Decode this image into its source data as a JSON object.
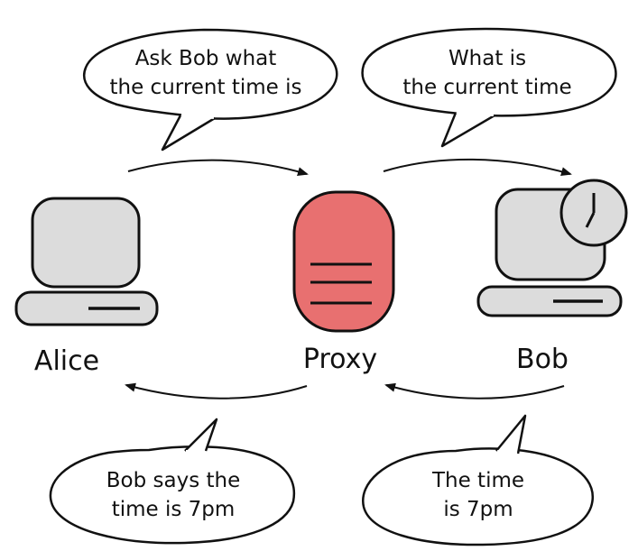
{
  "nodes": {
    "alice": {
      "label": "Alice"
    },
    "proxy": {
      "label": "Proxy"
    },
    "bob": {
      "label": "Bob"
    }
  },
  "bubbles": {
    "alice_to_proxy": {
      "lines": [
        "Ask Bob what",
        "the current time is"
      ]
    },
    "proxy_to_bob": {
      "lines": [
        "What is",
        "the current time"
      ]
    },
    "proxy_to_alice": {
      "lines": [
        "Bob says the",
        "time is 7pm"
      ]
    },
    "bob_to_proxy": {
      "lines": [
        "The time",
        "is 7pm"
      ]
    }
  },
  "colors": {
    "proxy_fill": "#e87070",
    "device_fill": "#dcdcdc",
    "stroke": "#111111"
  },
  "icons": {
    "alice": "computer-icon",
    "proxy": "server-icon",
    "bob": "computer-icon",
    "bob_badge": "clock-icon"
  }
}
